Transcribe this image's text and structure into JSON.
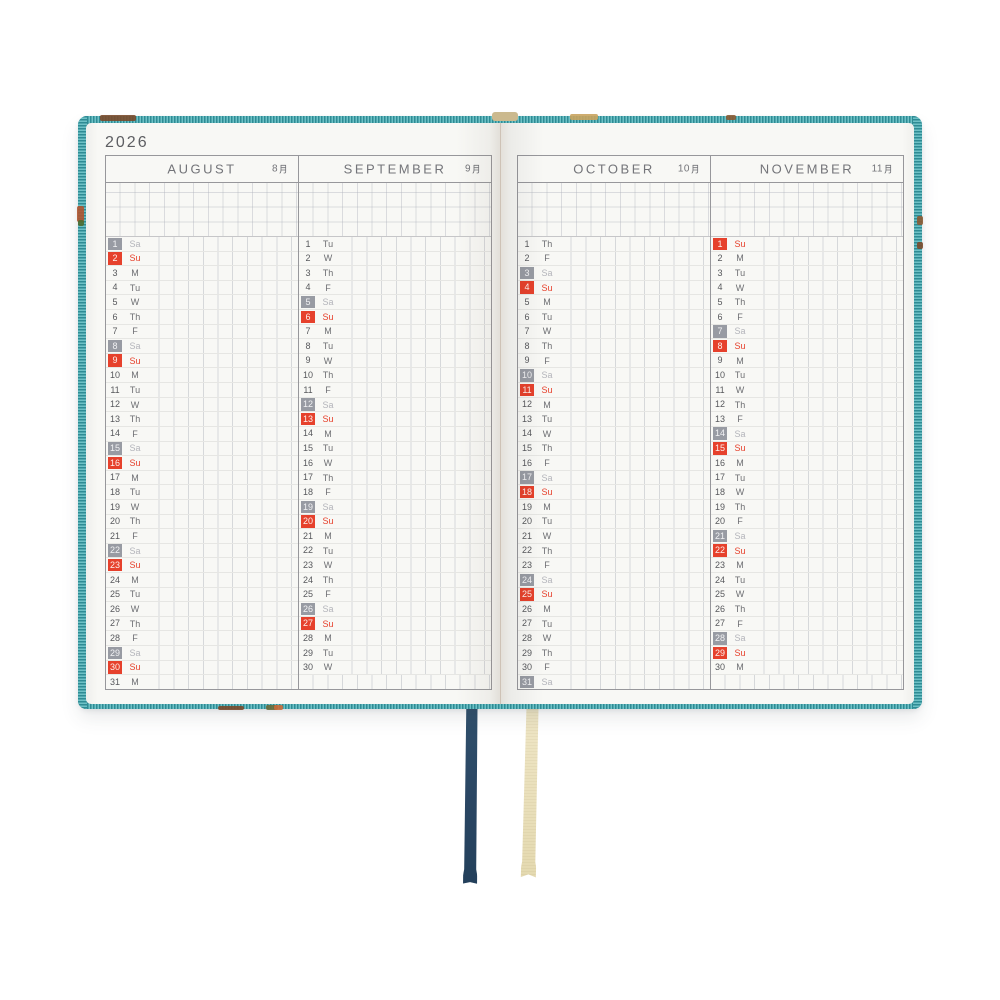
{
  "year": "2026",
  "months": [
    {
      "name": "AUGUST",
      "jp": "8月",
      "days": [
        [
          "1",
          "Sa"
        ],
        [
          "2",
          "Su"
        ],
        [
          "3",
          "M"
        ],
        [
          "4",
          "Tu"
        ],
        [
          "5",
          "W"
        ],
        [
          "6",
          "Th"
        ],
        [
          "7",
          "F"
        ],
        [
          "8",
          "Sa"
        ],
        [
          "9",
          "Su"
        ],
        [
          "10",
          "M"
        ],
        [
          "11",
          "Tu"
        ],
        [
          "12",
          "W"
        ],
        [
          "13",
          "Th"
        ],
        [
          "14",
          "F"
        ],
        [
          "15",
          "Sa"
        ],
        [
          "16",
          "Su"
        ],
        [
          "17",
          "M"
        ],
        [
          "18",
          "Tu"
        ],
        [
          "19",
          "W"
        ],
        [
          "20",
          "Th"
        ],
        [
          "21",
          "F"
        ],
        [
          "22",
          "Sa"
        ],
        [
          "23",
          "Su"
        ],
        [
          "24",
          "M"
        ],
        [
          "25",
          "Tu"
        ],
        [
          "26",
          "W"
        ],
        [
          "27",
          "Th"
        ],
        [
          "28",
          "F"
        ],
        [
          "29",
          "Sa"
        ],
        [
          "30",
          "Su"
        ],
        [
          "31",
          "M"
        ]
      ]
    },
    {
      "name": "SEPTEMBER",
      "jp": "9月",
      "days": [
        [
          "1",
          "Tu"
        ],
        [
          "2",
          "W"
        ],
        [
          "3",
          "Th"
        ],
        [
          "4",
          "F"
        ],
        [
          "5",
          "Sa"
        ],
        [
          "6",
          "Su"
        ],
        [
          "7",
          "M"
        ],
        [
          "8",
          "Tu"
        ],
        [
          "9",
          "W"
        ],
        [
          "10",
          "Th"
        ],
        [
          "11",
          "F"
        ],
        [
          "12",
          "Sa"
        ],
        [
          "13",
          "Su"
        ],
        [
          "14",
          "M"
        ],
        [
          "15",
          "Tu"
        ],
        [
          "16",
          "W"
        ],
        [
          "17",
          "Th"
        ],
        [
          "18",
          "F"
        ],
        [
          "19",
          "Sa"
        ],
        [
          "20",
          "Su"
        ],
        [
          "21",
          "M"
        ],
        [
          "22",
          "Tu"
        ],
        [
          "23",
          "W"
        ],
        [
          "24",
          "Th"
        ],
        [
          "25",
          "F"
        ],
        [
          "26",
          "Sa"
        ],
        [
          "27",
          "Su"
        ],
        [
          "28",
          "M"
        ],
        [
          "29",
          "Tu"
        ],
        [
          "30",
          "W"
        ]
      ]
    },
    {
      "name": "OCTOBER",
      "jp": "10月",
      "days": [
        [
          "1",
          "Th"
        ],
        [
          "2",
          "F"
        ],
        [
          "3",
          "Sa"
        ],
        [
          "4",
          "Su"
        ],
        [
          "5",
          "M"
        ],
        [
          "6",
          "Tu"
        ],
        [
          "7",
          "W"
        ],
        [
          "8",
          "Th"
        ],
        [
          "9",
          "F"
        ],
        [
          "10",
          "Sa"
        ],
        [
          "11",
          "Su"
        ],
        [
          "12",
          "M"
        ],
        [
          "13",
          "Tu"
        ],
        [
          "14",
          "W"
        ],
        [
          "15",
          "Th"
        ],
        [
          "16",
          "F"
        ],
        [
          "17",
          "Sa"
        ],
        [
          "18",
          "Su"
        ],
        [
          "19",
          "M"
        ],
        [
          "20",
          "Tu"
        ],
        [
          "21",
          "W"
        ],
        [
          "22",
          "Th"
        ],
        [
          "23",
          "F"
        ],
        [
          "24",
          "Sa"
        ],
        [
          "25",
          "Su"
        ],
        [
          "26",
          "M"
        ],
        [
          "27",
          "Tu"
        ],
        [
          "28",
          "W"
        ],
        [
          "29",
          "Th"
        ],
        [
          "30",
          "F"
        ],
        [
          "31",
          "Sa"
        ]
      ]
    },
    {
      "name": "NOVEMBER",
      "jp": "11月",
      "days": [
        [
          "1",
          "Su"
        ],
        [
          "2",
          "M"
        ],
        [
          "3",
          "Tu"
        ],
        [
          "4",
          "W"
        ],
        [
          "5",
          "Th"
        ],
        [
          "6",
          "F"
        ],
        [
          "7",
          "Sa"
        ],
        [
          "8",
          "Su"
        ],
        [
          "9",
          "M"
        ],
        [
          "10",
          "Tu"
        ],
        [
          "11",
          "W"
        ],
        [
          "12",
          "Th"
        ],
        [
          "13",
          "F"
        ],
        [
          "14",
          "Sa"
        ],
        [
          "15",
          "Su"
        ],
        [
          "16",
          "M"
        ],
        [
          "17",
          "Tu"
        ],
        [
          "18",
          "W"
        ],
        [
          "19",
          "Th"
        ],
        [
          "20",
          "F"
        ],
        [
          "21",
          "Sa"
        ],
        [
          "22",
          "Su"
        ],
        [
          "23",
          "M"
        ],
        [
          "24",
          "Tu"
        ],
        [
          "25",
          "W"
        ],
        [
          "26",
          "Th"
        ],
        [
          "27",
          "F"
        ],
        [
          "28",
          "Sa"
        ],
        [
          "29",
          "Su"
        ],
        [
          "30",
          "M"
        ]
      ]
    }
  ],
  "colors": {
    "sunday_highlight": "#e6412c",
    "saturday_highlight": "#989ba3",
    "cover_teal": "#3f9da5",
    "ribbon_navy": "#2c4a66",
    "ribbon_cream": "#ece2bf",
    "page": "#f8f8f5"
  },
  "bookmarks": [
    {
      "label": "navy ribbon"
    },
    {
      "label": "cream ribbon"
    }
  ]
}
